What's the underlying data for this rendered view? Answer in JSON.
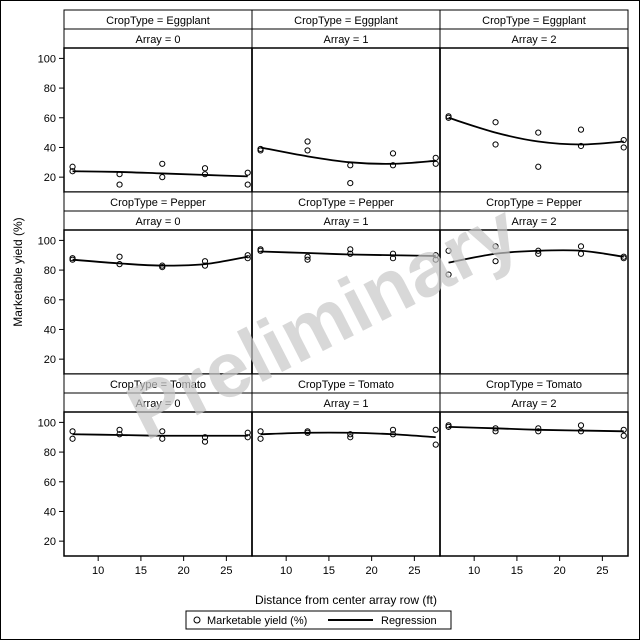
{
  "chart_data": {
    "type": "scatter",
    "xlabel": "Distance from center array row (ft)",
    "ylabel": "Marketable yield (%)",
    "xlim": [
      6,
      28
    ],
    "ylim": [
      10,
      107
    ],
    "x_ticks": [
      10,
      15,
      20,
      25
    ],
    "y_ticks": [
      20,
      40,
      60,
      80,
      100
    ],
    "watermark": "Preliminary",
    "legend": {
      "placement": "bottom",
      "items": [
        "Marketable yield (%)",
        "Regression"
      ]
    },
    "panels": [
      {
        "crop_header": "CropType = Eggplant",
        "array_header": "Array = 0",
        "points": [
          [
            7,
            27
          ],
          [
            7,
            24
          ],
          [
            12.5,
            22
          ],
          [
            12.5,
            15
          ],
          [
            17.5,
            29
          ],
          [
            17.5,
            20
          ],
          [
            22.5,
            26
          ],
          [
            22.5,
            22
          ],
          [
            27.5,
            23
          ],
          [
            27.5,
            15
          ]
        ],
        "regression": [
          [
            7,
            24
          ],
          [
            12.5,
            23.5
          ],
          [
            17.5,
            22.5
          ],
          [
            22.5,
            21.5
          ],
          [
            27.5,
            20.5
          ]
        ]
      },
      {
        "crop_header": "CropType = Eggplant",
        "array_header": "Array = 1",
        "points": [
          [
            7,
            39
          ],
          [
            7,
            38
          ],
          [
            12.5,
            44
          ],
          [
            12.5,
            38
          ],
          [
            17.5,
            28
          ],
          [
            17.5,
            16
          ],
          [
            22.5,
            36
          ],
          [
            22.5,
            28
          ],
          [
            27.5,
            33
          ],
          [
            27.5,
            29
          ]
        ],
        "regression": [
          [
            7,
            40
          ],
          [
            12.5,
            34
          ],
          [
            17.5,
            30
          ],
          [
            22.5,
            29
          ],
          [
            27.5,
            31
          ]
        ]
      },
      {
        "crop_header": "CropType = Eggplant",
        "array_header": "Array = 2",
        "points": [
          [
            7,
            61
          ],
          [
            7,
            60
          ],
          [
            12.5,
            57
          ],
          [
            12.5,
            42
          ],
          [
            17.5,
            50
          ],
          [
            17.5,
            27
          ],
          [
            22.5,
            52
          ],
          [
            22.5,
            41
          ],
          [
            27.5,
            45
          ],
          [
            27.5,
            40
          ]
        ],
        "regression": [
          [
            7,
            60
          ],
          [
            12.5,
            50
          ],
          [
            17.5,
            44
          ],
          [
            22.5,
            42
          ],
          [
            27.5,
            44
          ]
        ]
      },
      {
        "crop_header": "CropType = Pepper",
        "array_header": "Array = 0",
        "points": [
          [
            7,
            88
          ],
          [
            7,
            87
          ],
          [
            12.5,
            89
          ],
          [
            12.5,
            84
          ],
          [
            17.5,
            83
          ],
          [
            17.5,
            82
          ],
          [
            22.5,
            86
          ],
          [
            22.5,
            83
          ],
          [
            27.5,
            90
          ],
          [
            27.5,
            88
          ]
        ],
        "regression": [
          [
            7,
            87
          ],
          [
            12.5,
            84.5
          ],
          [
            17.5,
            83
          ],
          [
            22.5,
            84
          ],
          [
            27.5,
            89
          ]
        ]
      },
      {
        "crop_header": "CropType = Pepper",
        "array_header": "Array = 1",
        "points": [
          [
            7,
            94
          ],
          [
            7,
            93
          ],
          [
            12.5,
            89
          ],
          [
            12.5,
            87
          ],
          [
            17.5,
            94
          ],
          [
            17.5,
            91
          ],
          [
            22.5,
            91
          ],
          [
            22.5,
            88
          ],
          [
            27.5,
            90
          ],
          [
            27.5,
            87
          ]
        ],
        "regression": [
          [
            7,
            92.5
          ],
          [
            12.5,
            91.5
          ],
          [
            17.5,
            90.5
          ],
          [
            22.5,
            90
          ],
          [
            27.5,
            89.5
          ]
        ]
      },
      {
        "crop_header": "CropType = Pepper",
        "array_header": "Array = 2",
        "points": [
          [
            7,
            93
          ],
          [
            7,
            77
          ],
          [
            12.5,
            96
          ],
          [
            12.5,
            86
          ],
          [
            17.5,
            93
          ],
          [
            17.5,
            91
          ],
          [
            22.5,
            96
          ],
          [
            22.5,
            91
          ],
          [
            27.5,
            89
          ],
          [
            27.5,
            88
          ]
        ],
        "regression": [
          [
            7,
            85
          ],
          [
            12.5,
            91
          ],
          [
            17.5,
            93
          ],
          [
            22.5,
            93
          ],
          [
            27.5,
            89
          ]
        ]
      },
      {
        "crop_header": "CropType = Tomato",
        "array_header": "Array = 0",
        "points": [
          [
            7,
            94
          ],
          [
            7,
            89
          ],
          [
            12.5,
            95
          ],
          [
            12.5,
            92
          ],
          [
            17.5,
            94
          ],
          [
            17.5,
            89
          ],
          [
            22.5,
            90
          ],
          [
            22.5,
            87
          ],
          [
            27.5,
            93
          ],
          [
            27.5,
            90
          ]
        ],
        "regression": [
          [
            7,
            92
          ],
          [
            12.5,
            91.5
          ],
          [
            17.5,
            91
          ],
          [
            22.5,
            91
          ],
          [
            27.5,
            91
          ]
        ]
      },
      {
        "crop_header": "CropType = Tomato",
        "array_header": "Array = 1",
        "points": [
          [
            7,
            94
          ],
          [
            7,
            89
          ],
          [
            12.5,
            94
          ],
          [
            12.5,
            93
          ],
          [
            17.5,
            92
          ],
          [
            17.5,
            90
          ],
          [
            22.5,
            95
          ],
          [
            22.5,
            92
          ],
          [
            27.5,
            95
          ],
          [
            27.5,
            85
          ]
        ],
        "regression": [
          [
            7,
            92
          ],
          [
            12.5,
            93
          ],
          [
            17.5,
            93
          ],
          [
            22.5,
            92
          ],
          [
            27.5,
            90
          ]
        ]
      },
      {
        "crop_header": "CropType = Tomato",
        "array_header": "Array = 2",
        "points": [
          [
            7,
            98
          ],
          [
            7,
            97
          ],
          [
            12.5,
            96
          ],
          [
            12.5,
            94
          ],
          [
            17.5,
            96
          ],
          [
            17.5,
            94
          ],
          [
            22.5,
            98
          ],
          [
            22.5,
            94
          ],
          [
            27.5,
            95
          ],
          [
            27.5,
            91
          ]
        ],
        "regression": [
          [
            7,
            97
          ],
          [
            12.5,
            96
          ],
          [
            17.5,
            95
          ],
          [
            22.5,
            94.5
          ],
          [
            27.5,
            94
          ]
        ]
      }
    ]
  }
}
